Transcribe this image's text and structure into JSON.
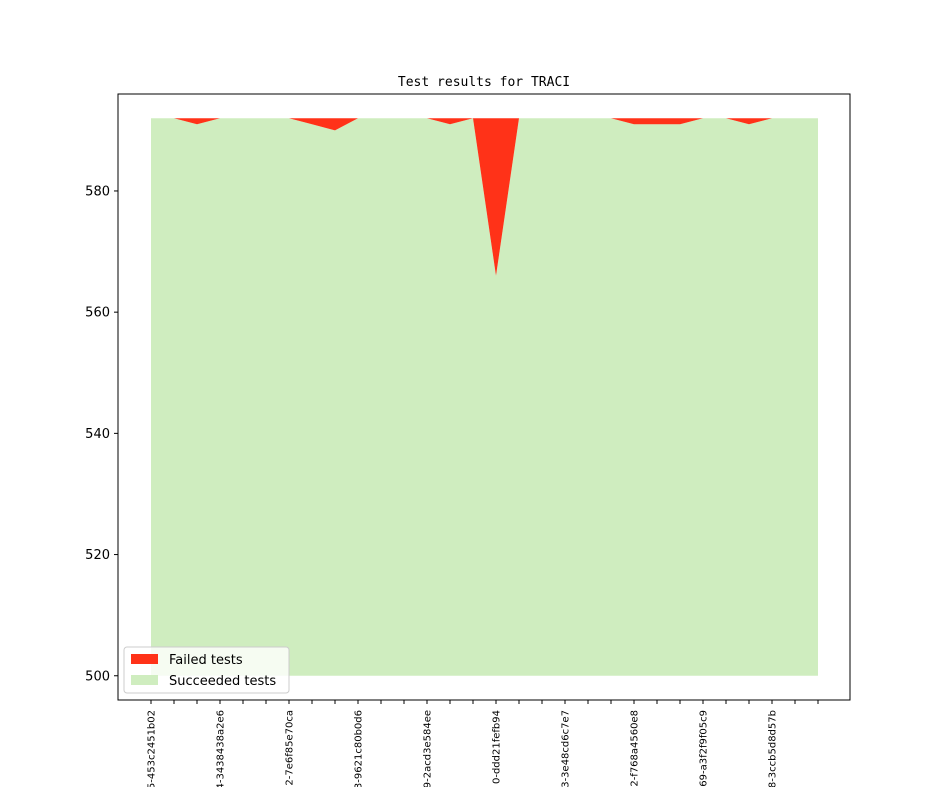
{
  "chart_data": {
    "type": "area",
    "title": "Test results for TRACI",
    "xlabel": "",
    "ylabel": "",
    "ylim": [
      496,
      596
    ],
    "yticks": [
      500,
      520,
      540,
      560,
      580
    ],
    "x_count": 30,
    "xtick_labels": [
      {
        "index": 0,
        "label": "5-453c2451b02"
      },
      {
        "index": 3,
        "label": "4-3438438a2e6"
      },
      {
        "index": 6,
        "label": "2-7e6f85e70ca"
      },
      {
        "index": 9,
        "label": "3-9621c80b0d6"
      },
      {
        "index": 12,
        "label": "9-2acd3e584ee"
      },
      {
        "index": 15,
        "label": "0-ddd21fefb94"
      },
      {
        "index": 18,
        "label": "3-3e48cd6c7e7"
      },
      {
        "index": 21,
        "label": "2-f768a4560e8"
      },
      {
        "index": 24,
        "label": "69-a3f2f9f05c9"
      },
      {
        "index": 27,
        "label": "8-3ccb5d8d57b"
      }
    ],
    "baseline": 500,
    "series": [
      {
        "name": "Succeeded tests",
        "color": "#cfedbf",
        "values": [
          592,
          592,
          591,
          592,
          592,
          592,
          592,
          591,
          590,
          592,
          592,
          592,
          592,
          591,
          592,
          566,
          592,
          592,
          592,
          592,
          592,
          591,
          591,
          591,
          592,
          592,
          591,
          592,
          592,
          592
        ]
      },
      {
        "name": "Failed tests",
        "color": "#ff3218",
        "values": [
          0,
          0,
          1,
          0,
          0,
          0,
          0,
          1,
          2,
          0,
          0,
          0,
          0,
          1,
          0,
          26,
          0,
          0,
          0,
          0,
          0,
          1,
          1,
          1,
          0,
          0,
          1,
          0,
          0,
          0
        ]
      }
    ],
    "legend": {
      "placement": "lower-left",
      "entries": [
        "Failed tests",
        "Succeeded tests"
      ]
    }
  }
}
